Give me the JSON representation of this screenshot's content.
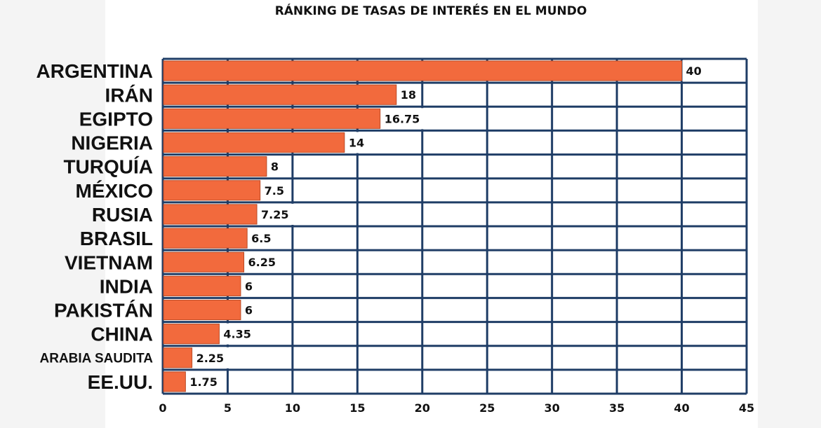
{
  "chart_data": {
    "type": "bar",
    "orientation": "horizontal",
    "title": "RÁNKING DE TASAS DE INTERÉS EN EL MUNDO",
    "categories": [
      "ARGENTINA",
      "IRÁN",
      "EGIPTO",
      "NIGERIA",
      "TURQUÍA",
      "MÉXICO",
      "RUSIA",
      "BRASIL",
      "VIETNAM",
      "INDIA",
      "PAKISTÁN",
      "CHINA",
      "ARABIA SAUDITA",
      "EE.UU."
    ],
    "values": [
      40,
      18,
      16.75,
      14,
      8,
      7.5,
      7.25,
      6.5,
      6.25,
      6,
      6,
      4.35,
      2.25,
      1.75
    ],
    "value_labels": [
      "40",
      "18",
      "16.75",
      "14",
      "8",
      "7.5",
      "7.25",
      "6.5",
      "6.25",
      "6",
      "6",
      "4.35",
      "2.25",
      "1.75"
    ],
    "xlim": [
      0,
      45
    ],
    "xticks": [
      0,
      5,
      10,
      15,
      20,
      25,
      30,
      35,
      40,
      45
    ],
    "xlabel": "",
    "ylabel": "",
    "grid": true,
    "colors": {
      "bar": "#f26a3d",
      "bar_edge": "#b84a25",
      "grid": "#1f3d66",
      "label_box": "#ffffff"
    }
  }
}
